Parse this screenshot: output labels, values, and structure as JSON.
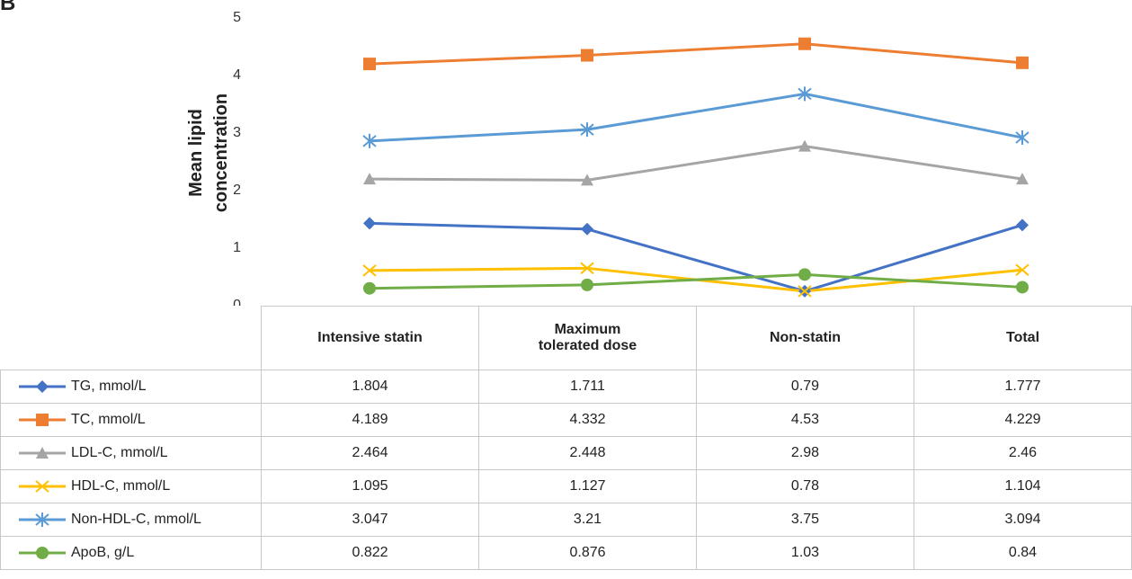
{
  "panel_label": "B",
  "chart_data": {
    "type": "line",
    "ylabel": "Mean lipid concentration",
    "ylim": [
      0,
      5
    ],
    "yticks": [
      0,
      1,
      2,
      3,
      4,
      5
    ],
    "categories": [
      "Intensive statin",
      "Maximum tolerated dose",
      "Non-statin",
      "Total"
    ],
    "category_label_lines": [
      [
        "Intensive statin"
      ],
      [
        "Maximum",
        "tolerated dose"
      ],
      [
        "Non-statin"
      ],
      [
        "Total"
      ]
    ],
    "grid": false,
    "legend": "table-left",
    "series": [
      {
        "name": "TG, mmol/L",
        "color": "#4472C4",
        "marker": "diamond",
        "values": [
          1.4,
          1.3,
          0.22,
          1.37
        ],
        "table_values": [
          "1.804",
          "1.711",
          "0.79",
          "1.777"
        ]
      },
      {
        "name": "TC, mmol/L",
        "color": "#ED7D31",
        "marker": "square",
        "values": [
          4.17,
          4.32,
          4.52,
          4.19
        ],
        "table_values": [
          "4.189",
          "4.332",
          "4.53",
          "4.229"
        ]
      },
      {
        "name": "LDL-C, mmol/L",
        "color": "#A5A5A5",
        "marker": "triangle",
        "values": [
          2.17,
          2.15,
          2.74,
          2.17
        ],
        "table_values": [
          "2.464",
          "2.448",
          "2.98",
          "2.46"
        ]
      },
      {
        "name": "HDL-C, mmol/L",
        "color": "#FFC000",
        "marker": "x",
        "values": [
          0.58,
          0.62,
          0.22,
          0.59
        ],
        "table_values": [
          "1.095",
          "1.127",
          "0.78",
          "1.104"
        ]
      },
      {
        "name": "Non-HDL-C, mmol/L",
        "color": "#5B9BD5",
        "marker": "star",
        "values": [
          2.83,
          3.03,
          3.65,
          2.89
        ],
        "table_values": [
          "3.047",
          "3.21",
          "3.75",
          "3.094"
        ]
      },
      {
        "name": "ApoB, g/L",
        "color": "#70AD47",
        "marker": "circle",
        "values": [
          0.27,
          0.33,
          0.51,
          0.29
        ],
        "table_values": [
          "0.822",
          "0.876",
          "1.03",
          "0.84"
        ]
      }
    ]
  }
}
